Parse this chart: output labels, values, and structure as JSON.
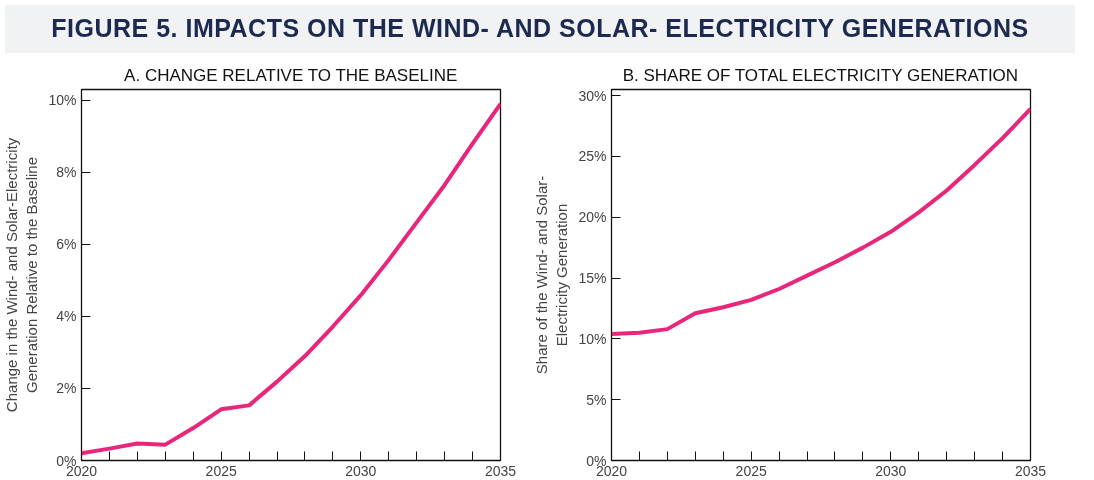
{
  "chart_data": [
    {
      "type": "other",
      "title": "FIGURE 5. IMPACTS ON THE WIND- AND SOLAR- ELECTRICITY GENERATIONS"
    },
    {
      "type": "line",
      "title": "A. CHANGE RELATIVE TO THE BASELINE",
      "ylabel": "Change in the Wind- and Solar-Electricity\nGeneration Relative to the Baseline",
      "x": [
        2020,
        2021,
        2022,
        2023,
        2024,
        2025,
        2026,
        2027,
        2028,
        2029,
        2030,
        2031,
        2032,
        2033,
        2034,
        2035
      ],
      "series": [
        {
          "color": "#e8277a",
          "values": [
            0.2,
            0.33,
            0.47,
            0.44,
            0.9,
            1.42,
            1.53,
            2.19,
            2.9,
            3.72,
            4.59,
            5.57,
            6.61,
            7.65,
            8.8,
            9.9
          ]
        }
      ],
      "xlim": [
        2020,
        2035
      ],
      "xticks": [
        2020,
        {
          "value": 2021,
          "label": null
        },
        {
          "value": 2022,
          "label": null
        },
        {
          "value": 2023,
          "label": null
        },
        {
          "value": 2024,
          "label": null
        },
        2025,
        {
          "value": 2026,
          "label": null
        },
        {
          "value": 2027,
          "label": null
        },
        {
          "value": 2028,
          "label": null
        },
        {
          "value": 2029,
          "label": null
        },
        2030,
        {
          "value": 2031,
          "label": null
        },
        {
          "value": 2032,
          "label": null
        },
        {
          "value": 2033,
          "label": null
        },
        {
          "value": 2034,
          "label": null
        },
        2035
      ],
      "ylim": [
        0,
        10.3
      ],
      "yticks": [
        {
          "value": 0,
          "label": "0%"
        },
        {
          "value": 2,
          "label": "2%"
        },
        {
          "value": 4,
          "label": "4%"
        },
        {
          "value": 6,
          "label": "6%"
        },
        {
          "value": 8,
          "label": "8%"
        },
        {
          "value": 10,
          "label": "10%"
        }
      ],
      "grid": false,
      "marker": "none",
      "line_style": "solid"
    },
    {
      "type": "line",
      "title": "B. SHARE OF TOTAL ELECTRICITY GENERATION",
      "ylabel": "Share of the Wind- and Solar-\nElectricity Generation",
      "x": [
        2020,
        2021,
        2022,
        2023,
        2024,
        2025,
        2026,
        2027,
        2028,
        2029,
        2030,
        2031,
        2032,
        2033,
        2034,
        2035
      ],
      "series": [
        {
          "color": "#e8277a",
          "values": [
            10.4,
            10.5,
            10.8,
            12.1,
            12.6,
            13.2,
            14.1,
            15.2,
            16.3,
            17.5,
            18.8,
            20.4,
            22.2,
            24.3,
            26.5,
            28.9
          ]
        }
      ],
      "xlim": [
        2020,
        2035
      ],
      "xticks": [
        2020,
        {
          "value": 2021,
          "label": null
        },
        {
          "value": 2022,
          "label": null
        },
        {
          "value": 2023,
          "label": null
        },
        {
          "value": 2024,
          "label": null
        },
        2025,
        {
          "value": 2026,
          "label": null
        },
        {
          "value": 2027,
          "label": null
        },
        {
          "value": 2028,
          "label": null
        },
        {
          "value": 2029,
          "label": null
        },
        2030,
        {
          "value": 2031,
          "label": null
        },
        {
          "value": 2032,
          "label": null
        },
        {
          "value": 2033,
          "label": null
        },
        {
          "value": 2034,
          "label": null
        },
        2035
      ],
      "ylim": [
        0,
        30.5
      ],
      "yticks": [
        {
          "value": 0,
          "label": "0%"
        },
        {
          "value": 5,
          "label": "5%"
        },
        {
          "value": 10,
          "label": "10%"
        },
        {
          "value": 15,
          "label": "15%"
        },
        {
          "value": 20,
          "label": "20%"
        },
        {
          "value": 25,
          "label": "25%"
        },
        {
          "value": 30,
          "label": "30%"
        }
      ],
      "grid": false,
      "marker": "none",
      "line_style": "solid"
    }
  ]
}
